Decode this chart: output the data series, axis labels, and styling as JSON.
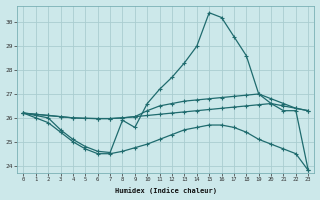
{
  "xlabel": "Humidex (Indice chaleur)",
  "bg_color": "#cce8ea",
  "grid_color": "#aacdd0",
  "line_color": "#1f6b6e",
  "xlim": [
    -0.5,
    23.5
  ],
  "ylim": [
    23.7,
    30.7
  ],
  "yticks": [
    24,
    25,
    26,
    27,
    28,
    29,
    30
  ],
  "xticks": [
    0,
    1,
    2,
    3,
    4,
    5,
    6,
    7,
    8,
    9,
    10,
    11,
    12,
    13,
    14,
    15,
    16,
    17,
    18,
    19,
    20,
    21,
    22,
    23
  ],
  "curve_upper_x": [
    0,
    1,
    2,
    3,
    4,
    5,
    6,
    7,
    8,
    9,
    10,
    11,
    12,
    13,
    14,
    15,
    16,
    17,
    18,
    19,
    20,
    21,
    22,
    23
  ],
  "curve_upper_y": [
    26.2,
    26.15,
    26.1,
    26.05,
    26.0,
    25.98,
    25.97,
    25.97,
    26.0,
    26.05,
    26.3,
    26.5,
    26.6,
    26.7,
    26.75,
    26.8,
    26.85,
    26.9,
    26.95,
    27.0,
    26.8,
    26.6,
    26.4,
    26.3
  ],
  "curve_mid_x": [
    0,
    1,
    2,
    3,
    4,
    5,
    6,
    7,
    8,
    9,
    10,
    11,
    12,
    13,
    14,
    15,
    16,
    17,
    18,
    19,
    20,
    21,
    22,
    23
  ],
  "curve_mid_y": [
    26.2,
    26.15,
    26.1,
    26.05,
    26.0,
    25.98,
    25.97,
    25.97,
    26.0,
    26.05,
    26.1,
    26.15,
    26.2,
    26.25,
    26.3,
    26.35,
    26.4,
    26.45,
    26.5,
    26.55,
    26.6,
    26.5,
    26.4,
    26.3
  ],
  "curve_low_x": [
    0,
    1,
    2,
    3,
    4,
    5,
    6,
    7,
    8,
    9,
    10,
    11,
    12,
    13,
    14,
    15,
    16,
    17,
    18,
    19,
    20,
    21,
    22,
    23
  ],
  "curve_low_y": [
    26.2,
    26.0,
    25.8,
    25.4,
    25.0,
    24.7,
    24.5,
    24.5,
    24.6,
    24.75,
    24.9,
    25.1,
    25.3,
    25.5,
    25.6,
    25.7,
    25.7,
    25.6,
    25.4,
    25.1,
    24.9,
    24.7,
    24.5,
    23.8
  ],
  "curve_peak_x": [
    0,
    1,
    2,
    3,
    4,
    5,
    6,
    7,
    8,
    9,
    10,
    11,
    12,
    13,
    14,
    15,
    16,
    17,
    18,
    19,
    20,
    21,
    22,
    23
  ],
  "curve_peak_y": [
    26.2,
    26.1,
    26.0,
    25.5,
    25.1,
    24.8,
    24.6,
    24.55,
    25.9,
    25.6,
    26.6,
    27.2,
    27.7,
    28.3,
    29.0,
    30.4,
    30.2,
    29.4,
    28.6,
    27.0,
    26.6,
    26.3,
    26.3,
    23.8
  ]
}
